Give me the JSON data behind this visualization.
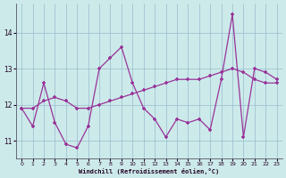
{
  "xlabel": "Windchill (Refroidissement éolien,°C)",
  "background_color": "#cceaea",
  "grid_color": "#99bbcc",
  "line_color": "#993399",
  "xlim": [
    -0.5,
    23.5
  ],
  "ylim": [
    10.5,
    14.8
  ],
  "yticks": [
    11,
    12,
    13,
    14
  ],
  "xticks": [
    0,
    1,
    2,
    3,
    4,
    5,
    6,
    7,
    8,
    9,
    10,
    11,
    12,
    13,
    14,
    15,
    16,
    17,
    18,
    19,
    20,
    21,
    22,
    23
  ],
  "jagged_x": [
    0,
    1,
    2,
    3,
    4,
    5,
    6,
    7,
    8,
    9,
    10,
    11,
    12,
    13,
    14,
    15,
    16,
    17,
    18,
    19,
    20,
    21,
    22,
    23
  ],
  "jagged_y": [
    11.9,
    11.4,
    12.6,
    11.5,
    10.9,
    10.8,
    11.4,
    13.0,
    13.3,
    13.6,
    12.6,
    11.9,
    11.6,
    11.1,
    11.6,
    11.5,
    11.6,
    11.3,
    12.7,
    14.5,
    11.1,
    13.0,
    12.9,
    12.7
  ],
  "trend_x": [
    0,
    1,
    2,
    3,
    4,
    5,
    6,
    7,
    8,
    9,
    10,
    11,
    12,
    13,
    14,
    15,
    16,
    17,
    18,
    19,
    20,
    21,
    22,
    23
  ],
  "trend_y": [
    11.9,
    11.9,
    12.1,
    12.2,
    12.1,
    11.9,
    11.9,
    12.0,
    12.1,
    12.2,
    12.3,
    12.4,
    12.5,
    12.6,
    12.7,
    12.7,
    12.7,
    12.8,
    12.9,
    13.0,
    12.9,
    12.7,
    12.6,
    12.6
  ]
}
